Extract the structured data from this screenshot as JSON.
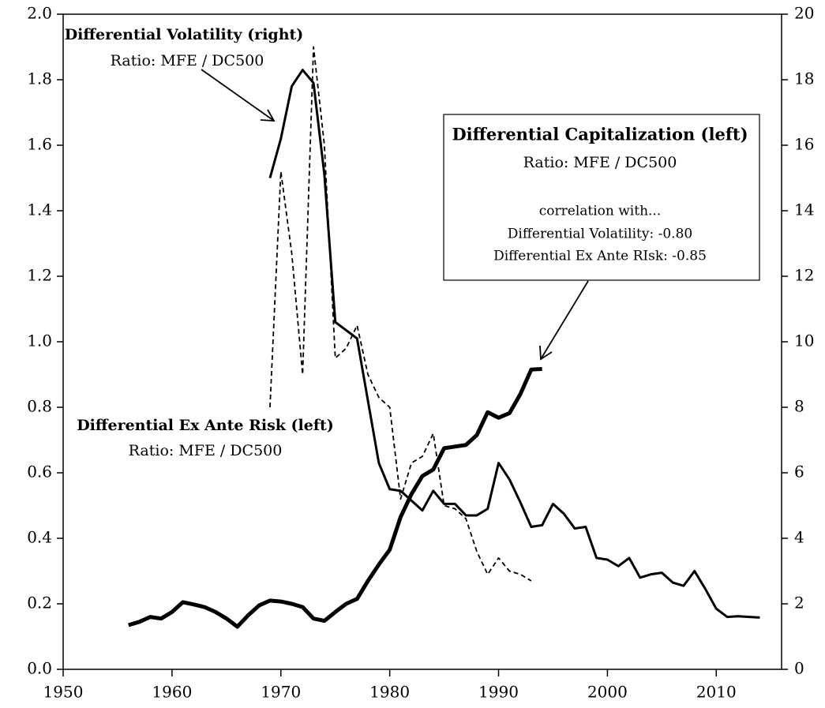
{
  "chart_data": {
    "type": "line",
    "xlim": [
      1950,
      2016
    ],
    "xticks": [
      1950,
      1960,
      1970,
      1980,
      1990,
      2000,
      2010
    ],
    "ylim": [
      0,
      2
    ],
    "yticks": [
      {
        "value": 0,
        "label": "0.0"
      },
      0.2,
      0.4,
      0.6,
      0.8,
      {
        "value": 1,
        "label": "1.0"
      },
      1.2,
      1.4,
      1.6,
      1.8,
      {
        "value": 2,
        "label": "2.0"
      }
    ],
    "y2lim": [
      0,
      20
    ],
    "y2ticks": [
      0,
      2,
      4,
      6,
      8,
      10,
      12,
      14,
      16,
      18,
      20
    ],
    "grid": false,
    "series": [
      {
        "name": "Differential Capitalization (left)",
        "color": "#000000",
        "axis": "y",
        "dashed": false,
        "x": [
          1956,
          1957,
          1958,
          1959,
          1960,
          1961,
          1962,
          1963,
          1964,
          1965,
          1966,
          1967,
          1968,
          1969,
          1970,
          1971,
          1972,
          1973,
          1974,
          1975,
          1976,
          1977,
          1978,
          1979,
          1980,
          1981,
          1982,
          1983,
          1984,
          1985,
          1986,
          1987,
          1988,
          1989,
          1990,
          1991,
          1992,
          1993,
          1994
        ],
        "values": [
          0.135,
          0.145,
          0.16,
          0.155,
          0.175,
          0.205,
          0.198,
          0.19,
          0.175,
          0.155,
          0.13,
          0.165,
          0.195,
          0.21,
          0.207,
          0.2,
          0.19,
          0.155,
          0.148,
          0.175,
          0.2,
          0.215,
          0.27,
          0.32,
          0.365,
          0.465,
          0.535,
          0.59,
          0.61,
          0.675,
          0.68,
          0.685,
          0.715,
          0.785,
          0.768,
          0.782,
          0.84,
          0.915,
          0.917
        ]
      },
      {
        "name": "Differential Volatility (right)",
        "color": "#000000",
        "axis": "y2",
        "dashed": false,
        "x": [
          1969,
          1970,
          1971,
          1972,
          1973,
          1974,
          1975,
          1976,
          1977,
          1978,
          1979,
          1980,
          1981,
          1982,
          1983,
          1984,
          1985,
          1986,
          1987,
          1988,
          1989,
          1990,
          1991,
          1992,
          1993,
          1994,
          1995,
          1996,
          1997,
          1998,
          1999,
          2000,
          2001,
          2002,
          2003,
          2004,
          2005,
          2006,
          2007,
          2008,
          2009,
          2010,
          2011,
          2012,
          2013,
          2014
        ],
        "values": [
          15.0,
          16.2,
          17.8,
          18.3,
          17.9,
          15.1,
          10.6,
          10.35,
          10.1,
          8.2,
          6.3,
          5.5,
          5.45,
          5.15,
          4.85,
          5.45,
          5.05,
          5.05,
          4.7,
          4.7,
          4.9,
          6.3,
          5.8,
          5.1,
          4.35,
          4.4,
          5.05,
          4.75,
          4.3,
          4.35,
          3.4,
          3.35,
          3.15,
          3.4,
          2.8,
          2.9,
          2.95,
          2.65,
          2.55,
          3.0,
          2.45,
          1.85,
          1.6,
          1.62,
          1.6,
          1.58
        ]
      },
      {
        "name": "Differential Ex Ante Risk (left)",
        "color": "#000000",
        "axis": "y",
        "dashed": true,
        "x": [
          1969,
          1970,
          1971,
          1972,
          1973,
          1974,
          1975,
          1976,
          1977,
          1978,
          1979,
          1980,
          1981,
          1982,
          1983,
          1984,
          1985,
          1986,
          1987,
          1988,
          1989,
          1990,
          1991,
          1992,
          1993
        ],
        "values": [
          0.8,
          1.52,
          1.27,
          0.9,
          1.9,
          1.6,
          0.95,
          0.98,
          1.05,
          0.9,
          0.83,
          0.8,
          0.52,
          0.63,
          0.65,
          0.72,
          0.5,
          0.49,
          0.46,
          0.36,
          0.29,
          0.34,
          0.3,
          0.29,
          0.27
        ]
      }
    ],
    "annotations": [
      {
        "lines": [
          "Ratio: MFE / DC500"
        ]
      },
      {
        "lines": [
          "Ratio: MFE / DC500"
        ]
      },
      {
        "lines": [
          "Ratio: MFE / DC500",
          "correlation with...",
          "Differential Volatility: -0.80",
          "Differential Ex Ante RIsk: -0.85"
        ]
      }
    ]
  }
}
